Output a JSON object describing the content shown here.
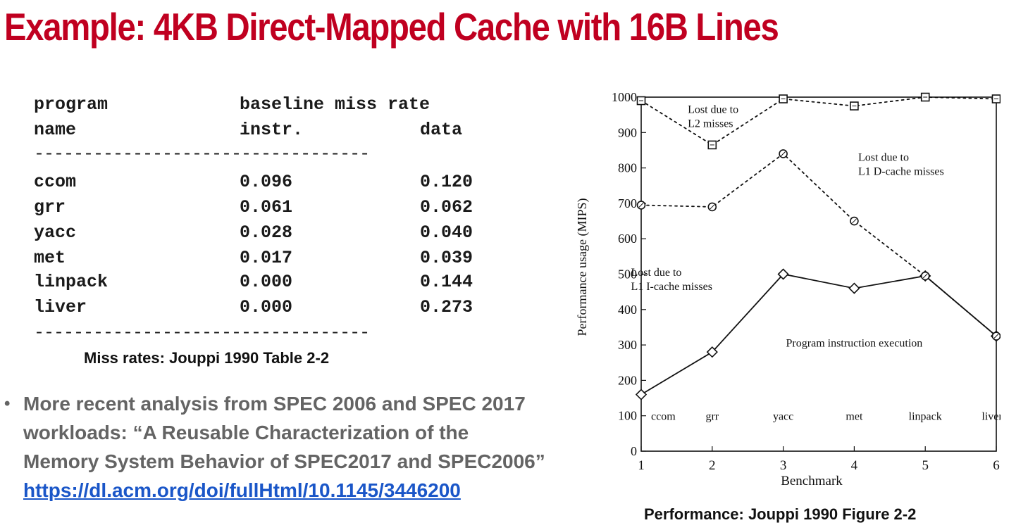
{
  "slide": {
    "title": "Example: 4KB Direct-Mapped Cache with 16B Lines",
    "table_caption": "Miss rates: Jouppi 1990 Table 2-2",
    "figure_caption": "Performance: Jouppi 1990 Figure 2-2",
    "bullet": {
      "line1": "More recent analysis from SPEC 2006 and SPEC 2017",
      "line2": "workloads: “A Reusable Characterization of the",
      "line3": "Memory System Behavior of SPEC2017 and SPEC2006”",
      "link": "https://dl.acm.org/doi/fullHtml/10.1145/3446200"
    }
  },
  "miss_table": {
    "header1": {
      "program": "program",
      "baseline": "baseline miss rate"
    },
    "header2": {
      "name": "name",
      "instr": "instr.",
      "data": "data"
    },
    "rule": "----------------------------------",
    "rows": [
      {
        "name": "ccom",
        "instr": "0.096",
        "data": "0.120"
      },
      {
        "name": "grr",
        "instr": "0.061",
        "data": "0.062"
      },
      {
        "name": "yacc",
        "instr": "0.028",
        "data": "0.040"
      },
      {
        "name": "met",
        "instr": "0.017",
        "data": "0.039"
      },
      {
        "name": "linpack",
        "instr": "0.000",
        "data": "0.144"
      },
      {
        "name": "liver",
        "instr": "0.000",
        "data": "0.273"
      }
    ]
  },
  "chart_data": [
    {
      "type": "table",
      "title": "",
      "columns": [
        "program name",
        "instr.",
        "data"
      ],
      "column_group": "baseline miss rate",
      "rows": [
        [
          "ccom",
          0.096,
          0.12
        ],
        [
          "grr",
          0.061,
          0.062
        ],
        [
          "yacc",
          0.028,
          0.04
        ],
        [
          "met",
          0.017,
          0.039
        ],
        [
          "linpack",
          0.0,
          0.144
        ],
        [
          "liver",
          0.0,
          0.273
        ]
      ]
    },
    {
      "type": "line",
      "title": "",
      "xlabel": "Benchmark",
      "ylabel": "Performance usage (MIPS)",
      "x": [
        1,
        2,
        3,
        4,
        5,
        6
      ],
      "xlim": [
        1,
        6
      ],
      "ylim": [
        0,
        1000
      ],
      "xticks": [
        "1",
        "2",
        "3",
        "4",
        "5",
        "6"
      ],
      "yticks": [
        "0",
        "100",
        "200",
        "300",
        "400",
        "500",
        "600",
        "700",
        "800",
        "900",
        "1000"
      ],
      "benchmark_labels": [
        "ccom",
        "grr",
        "yacc",
        "met",
        "linpack",
        "liver"
      ],
      "grid": false,
      "series": [
        {
          "marker": "diamond",
          "line": "solid",
          "values": [
            160,
            280,
            500,
            460,
            495,
            325
          ]
        },
        {
          "marker": "circle",
          "line": "dotted",
          "values": [
            695,
            690,
            840,
            650,
            495,
            325
          ]
        },
        {
          "marker": "square",
          "line": "dotted",
          "values": [
            990,
            865,
            995,
            975,
            1000,
            995
          ]
        }
      ],
      "annotations": [
        {
          "lines": [
            "Lost due to",
            "L2 misses"
          ],
          "x": 2.35,
          "y": 955
        },
        {
          "lines": [
            "Lost due to",
            "L1 D-cache misses"
          ],
          "x": 4.75,
          "y": 820
        },
        {
          "lines": [
            "Lost due to",
            "L1 I-cache misses"
          ],
          "x": 1.55,
          "y": 495
        },
        {
          "lines": [
            "Program instruction execution"
          ],
          "x": 4.0,
          "y": 295
        }
      ]
    }
  ]
}
